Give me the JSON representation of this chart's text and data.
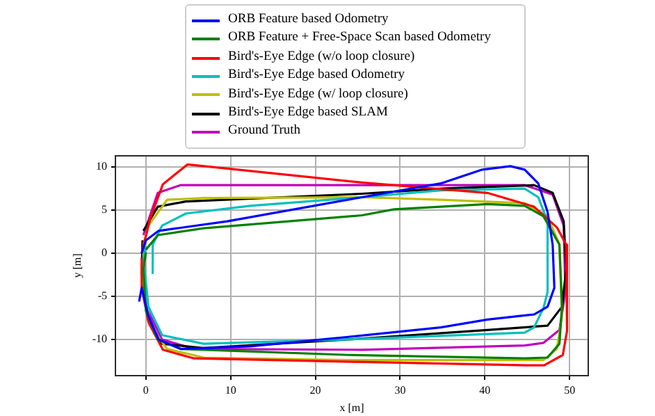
{
  "chart_data": {
    "type": "line",
    "xlabel": "x [m]",
    "ylabel": "y [m]",
    "xlim": [
      -3.6,
      52.2
    ],
    "ylim": [
      -14.2,
      11.3
    ],
    "xticks": [
      0,
      10,
      20,
      30,
      40,
      50
    ],
    "yticks": [
      -10,
      -5,
      0,
      5,
      10
    ],
    "grid": true,
    "legend": "top",
    "marker": "none",
    "line_style": "solid",
    "series": [
      {
        "name": "ORB Feature based Odometry",
        "color": "#0000ff",
        "x": [
          -0.5,
          0,
          1.5,
          9.6,
          25.5,
          34.8,
          39.7,
          43,
          44.7,
          46.3,
          47.4,
          48,
          48.2,
          47.4,
          45.8,
          40.3,
          34.8,
          23.9,
          12.3,
          4.1,
          1.5,
          0.3,
          -0.5,
          -0.8
        ],
        "values": [
          0,
          1.5,
          2.6,
          3.7,
          6.5,
          8.1,
          9.7,
          10.1,
          9.7,
          8.1,
          4.8,
          1,
          -4,
          -6.2,
          -7.1,
          -7.7,
          -8.6,
          -9.7,
          -10.8,
          -11.1,
          -10,
          -7.3,
          -4,
          -5.6
        ]
      },
      {
        "name": "ORB Feature + Free-Space Scan based Odometry",
        "color": "#008000",
        "x": [
          0,
          1.4,
          6.8,
          25.5,
          29.3,
          40.3,
          44.7,
          46.9,
          48.8,
          49.1,
          48.8,
          47.4,
          44.7,
          23.9,
          4.1,
          1.4,
          0,
          -0.3,
          0
        ],
        "values": [
          0.4,
          2.1,
          2.9,
          4.4,
          5.1,
          5.7,
          5.5,
          4.3,
          1,
          -6.2,
          -10.5,
          -12.1,
          -12.2,
          -11.8,
          -11.1,
          -10,
          -6.7,
          -1.8,
          0.1
        ]
      },
      {
        "name": "Bird's-Eye Edge (w/o loop closure)",
        "color": "#ff0000",
        "x": [
          -0.5,
          0.5,
          2,
          4.9,
          25.5,
          40.3,
          45.8,
          48.5,
          49.6,
          49.7,
          49.2,
          47,
          45,
          25,
          5.7,
          2,
          0.3,
          -0.5,
          -0.5
        ],
        "values": [
          0,
          4,
          8,
          10.3,
          8.2,
          7,
          5.4,
          3,
          1,
          -9,
          -11.8,
          -13,
          -13,
          -12.6,
          -12.2,
          -11.2,
          -8,
          -4,
          -0.5
        ]
      },
      {
        "name": "Bird's-Eye Edge based Odometry",
        "color": "#00bfbf",
        "x": [
          0.8,
          0.8,
          1.9,
          4.7,
          12.3,
          25.5,
          34.8,
          44.7,
          46.3,
          47.4,
          47.4,
          46.9,
          45.8,
          44.7,
          23.9,
          6.8,
          1.9,
          0.3,
          -0.3,
          0
        ],
        "values": [
          -2.4,
          1,
          3.2,
          4.6,
          5.5,
          6.5,
          7.3,
          7.5,
          6.5,
          3.7,
          -4.5,
          -6.4,
          -8.6,
          -9.2,
          -10,
          -10.5,
          -9.5,
          -6.2,
          -0.7,
          0.8
        ]
      },
      {
        "name": "Bird's-Eye Edge (w/ loop closure)",
        "color": "#bfbf00",
        "x": [
          -0.3,
          0.3,
          2.5,
          6.8,
          25.5,
          34.8,
          44.7,
          47.4,
          48.8,
          49.1,
          48.5,
          46.9,
          23.9,
          6.8,
          2.5,
          0.5,
          -0.3,
          -0.3
        ],
        "values": [
          1,
          3.2,
          6.2,
          6.4,
          6.5,
          6.2,
          5.8,
          4.3,
          1,
          -7.3,
          -11.1,
          -12.4,
          -12.4,
          -12.1,
          -11.1,
          -8.4,
          -3.4,
          0.5
        ]
      },
      {
        "name": "Bird's-Eye Edge based SLAM",
        "color": "#000000",
        "x": [
          -0.3,
          1.4,
          4.7,
          25.5,
          34.8,
          45.8,
          48,
          49.3,
          49.6,
          49.1,
          47.4,
          40.3,
          23.9,
          6.8,
          1.9,
          0.3,
          -0.5,
          -0.4
        ],
        "values": [
          2.6,
          5.4,
          6,
          6.9,
          7.5,
          7.9,
          7,
          3.7,
          -1.8,
          -6.2,
          -8.4,
          -8.9,
          -10,
          -11,
          -10.5,
          -7.8,
          -2.3,
          1.5
        ]
      },
      {
        "name": "Ground Truth",
        "color": "#bf00bf",
        "x": [
          -0.3,
          1.4,
          4.1,
          44.7,
          48,
          49.3,
          49.5,
          48.8,
          46.9,
          44.7,
          25.5,
          5.7,
          1.9,
          0,
          -0.3
        ],
        "values": [
          2.1,
          7,
          7.9,
          7.9,
          6.8,
          3.2,
          -4.5,
          -8.9,
          -10.4,
          -10.7,
          -11.2,
          -11.1,
          -10,
          -6.2,
          1.5
        ]
      }
    ]
  }
}
